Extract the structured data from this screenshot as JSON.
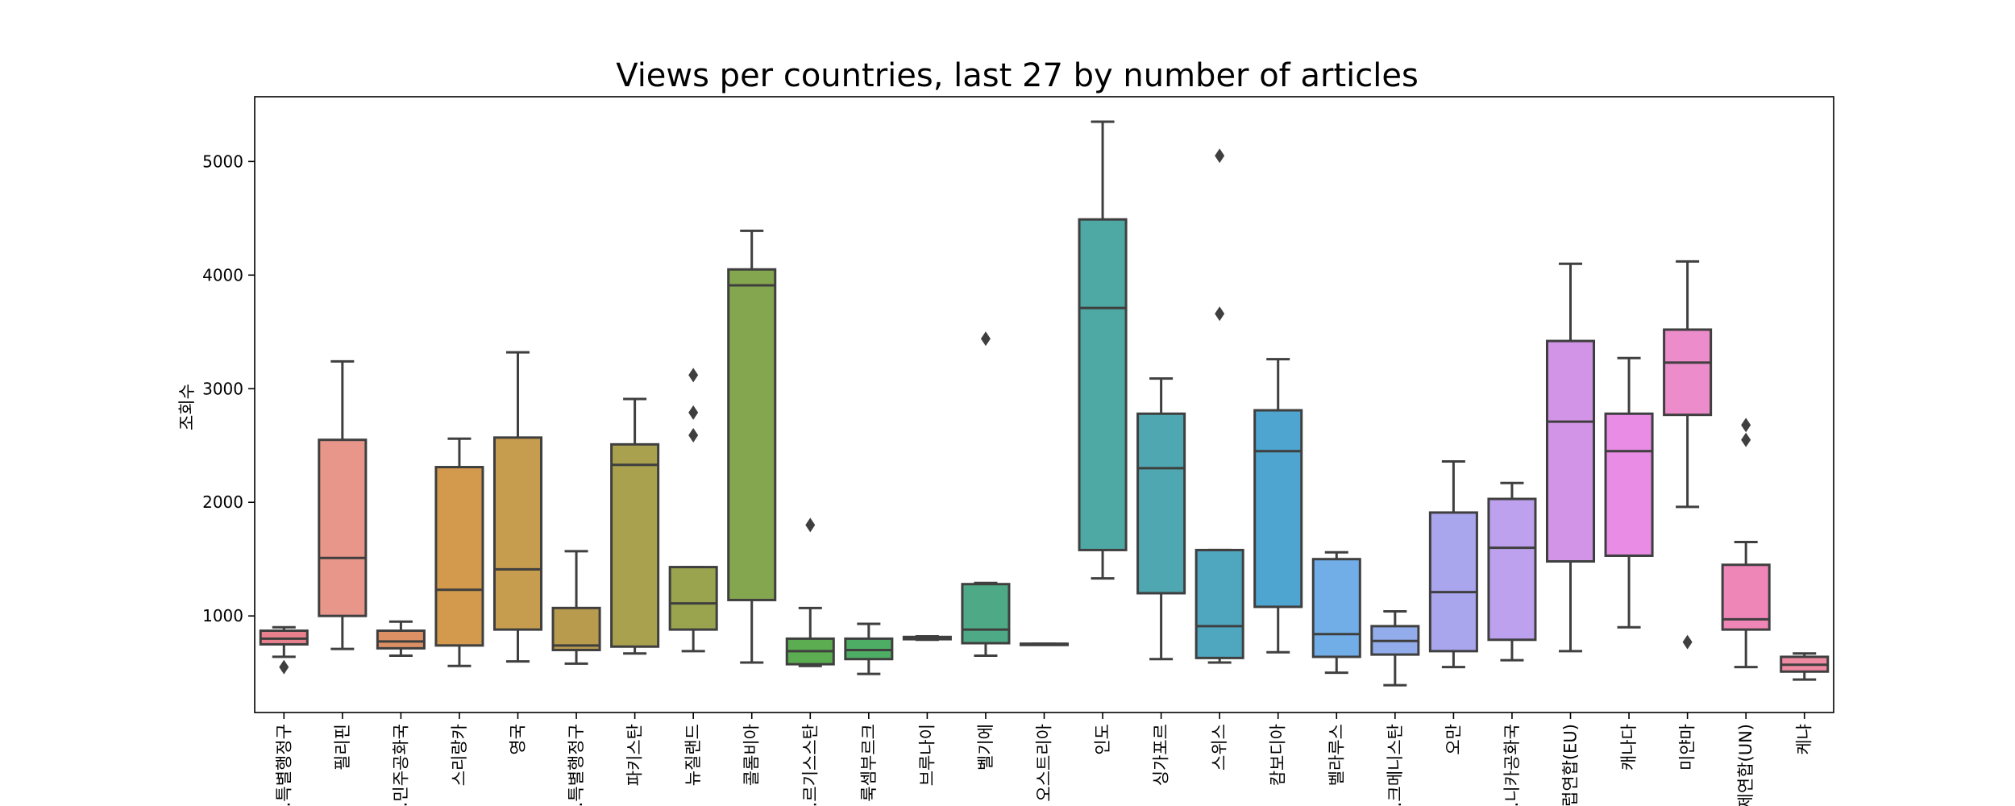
{
  "chart_data": {
    "type": "box",
    "title": "Views per countries, last 27 by number of articles",
    "xlabel": "",
    "ylabel": "조회수",
    "ylim": [
      150,
      5570
    ],
    "yticks": [
      1000,
      2000,
      3000,
      4000,
      5000
    ],
    "grid": false,
    "categories": [
      {
        "label": "…특별행정구",
        "color": "#e8818d",
        "whisker_low": 640,
        "q1": 750,
        "median": 800,
        "q3": 870,
        "whisker_high": 900,
        "outliers": [
          550
        ]
      },
      {
        "label": "필리핀",
        "color": "#e8968a",
        "whisker_low": 710,
        "q1": 1000,
        "median": 1510,
        "q3": 2550,
        "whisker_high": 3240,
        "outliers": []
      },
      {
        "label": "…민주공화국",
        "color": "#dd9064",
        "whisker_low": 650,
        "q1": 715,
        "median": 775,
        "q3": 870,
        "whisker_high": 950,
        "outliers": []
      },
      {
        "label": "스리랑카",
        "color": "#d39a4e",
        "whisker_low": 560,
        "q1": 740,
        "median": 1230,
        "q3": 2310,
        "whisker_high": 2560,
        "outliers": []
      },
      {
        "label": "영국",
        "color": "#c69d4e",
        "whisker_low": 600,
        "q1": 880,
        "median": 1410,
        "q3": 2570,
        "whisker_high": 3320,
        "outliers": []
      },
      {
        "label": "…특별행정구",
        "color": "#b99b4e",
        "whisker_low": 580,
        "q1": 700,
        "median": 740,
        "q3": 1070,
        "whisker_high": 1570,
        "outliers": []
      },
      {
        "label": "파키스탄",
        "color": "#a9a14e",
        "whisker_low": 670,
        "q1": 730,
        "median": 2330,
        "q3": 2510,
        "whisker_high": 2910,
        "outliers": []
      },
      {
        "label": "뉴질랜드",
        "color": "#9aa34e",
        "whisker_low": 690,
        "q1": 880,
        "median": 1110,
        "q3": 1430,
        "whisker_high": 1430,
        "outliers": [
          2590,
          2790,
          3120
        ]
      },
      {
        "label": "콜롬비아",
        "color": "#83a64e",
        "whisker_low": 590,
        "q1": 1140,
        "median": 3910,
        "q3": 4050,
        "whisker_high": 4390,
        "outliers": []
      },
      {
        "label": "…르기스스탄",
        "color": "#5cac52",
        "whisker_low": 560,
        "q1": 575,
        "median": 690,
        "q3": 800,
        "whisker_high": 1070,
        "outliers": [
          1800
        ]
      },
      {
        "label": "룩셈부르크",
        "color": "#4ead64",
        "whisker_low": 490,
        "q1": 620,
        "median": 700,
        "q3": 800,
        "whisker_high": 930,
        "outliers": []
      },
      {
        "label": "브루나이",
        "color": "#4eab77",
        "whisker_low": 790,
        "q1": 795,
        "median": 805,
        "q3": 815,
        "whisker_high": 820,
        "outliers": []
      },
      {
        "label": "벨기에",
        "color": "#4eaa86",
        "whisker_low": 650,
        "q1": 760,
        "median": 880,
        "q3": 1280,
        "whisker_high": 1290,
        "outliers": [
          3440
        ]
      },
      {
        "label": "오스트리아",
        "color": "#4ea996",
        "whisker_low": 755,
        "q1": 755,
        "median": 755,
        "q3": 755,
        "whisker_high": 755,
        "outliers": []
      },
      {
        "label": "인도",
        "color": "#4ea9a4",
        "whisker_low": 1330,
        "q1": 1580,
        "median": 3710,
        "q3": 4490,
        "whisker_high": 5350,
        "outliers": []
      },
      {
        "label": "싱가포르",
        "color": "#4ea7b1",
        "whisker_low": 620,
        "q1": 1200,
        "median": 2300,
        "q3": 2780,
        "whisker_high": 3090,
        "outliers": []
      },
      {
        "label": "스위스",
        "color": "#4ea6bf",
        "whisker_low": 590,
        "q1": 630,
        "median": 910,
        "q3": 1580,
        "whisker_high": 1580,
        "outliers": [
          3660,
          5050
        ]
      },
      {
        "label": "캄보디아",
        "color": "#4ea5cf",
        "whisker_low": 680,
        "q1": 1080,
        "median": 2450,
        "q3": 2810,
        "whisker_high": 3260,
        "outliers": []
      },
      {
        "label": "벨라루스",
        "color": "#71aee8",
        "whisker_low": 500,
        "q1": 640,
        "median": 840,
        "q3": 1500,
        "whisker_high": 1560,
        "outliers": []
      },
      {
        "label": "…크메니스탄",
        "color": "#93acec",
        "whisker_low": 390,
        "q1": 660,
        "median": 780,
        "q3": 910,
        "whisker_high": 1040,
        "outliers": []
      },
      {
        "label": "오만",
        "color": "#aaa6ee",
        "whisker_low": 550,
        "q1": 690,
        "median": 1210,
        "q3": 1910,
        "whisker_high": 2360,
        "outliers": []
      },
      {
        "label": "…니카공화국",
        "color": "#bda0ee",
        "whisker_low": 610,
        "q1": 790,
        "median": 1600,
        "q3": 2030,
        "whisker_high": 2170,
        "outliers": []
      },
      {
        "label": "…럽연합(EU)",
        "color": "#d294e6",
        "whisker_low": 690,
        "q1": 1480,
        "median": 2710,
        "q3": 3420,
        "whisker_high": 4100,
        "outliers": []
      },
      {
        "label": "캐나다",
        "color": "#e88ce6",
        "whisker_low": 900,
        "q1": 1530,
        "median": 2450,
        "q3": 2780,
        "whisker_high": 3270,
        "outliers": []
      },
      {
        "label": "미얀마",
        "color": "#ec8ccb",
        "whisker_low": 1960,
        "q1": 2770,
        "median": 3230,
        "q3": 3520,
        "whisker_high": 4120,
        "outliers": [
          770
        ]
      },
      {
        "label": "…제연합(UN)",
        "color": "#ef86b8",
        "whisker_low": 550,
        "q1": 880,
        "median": 970,
        "q3": 1450,
        "whisker_high": 1650,
        "outliers": [
          2550,
          2680
        ]
      },
      {
        "label": "케냐",
        "color": "#ee8aa2",
        "whisker_low": 440,
        "q1": 510,
        "median": 570,
        "q3": 640,
        "whisker_high": 670,
        "outliers": []
      }
    ]
  }
}
